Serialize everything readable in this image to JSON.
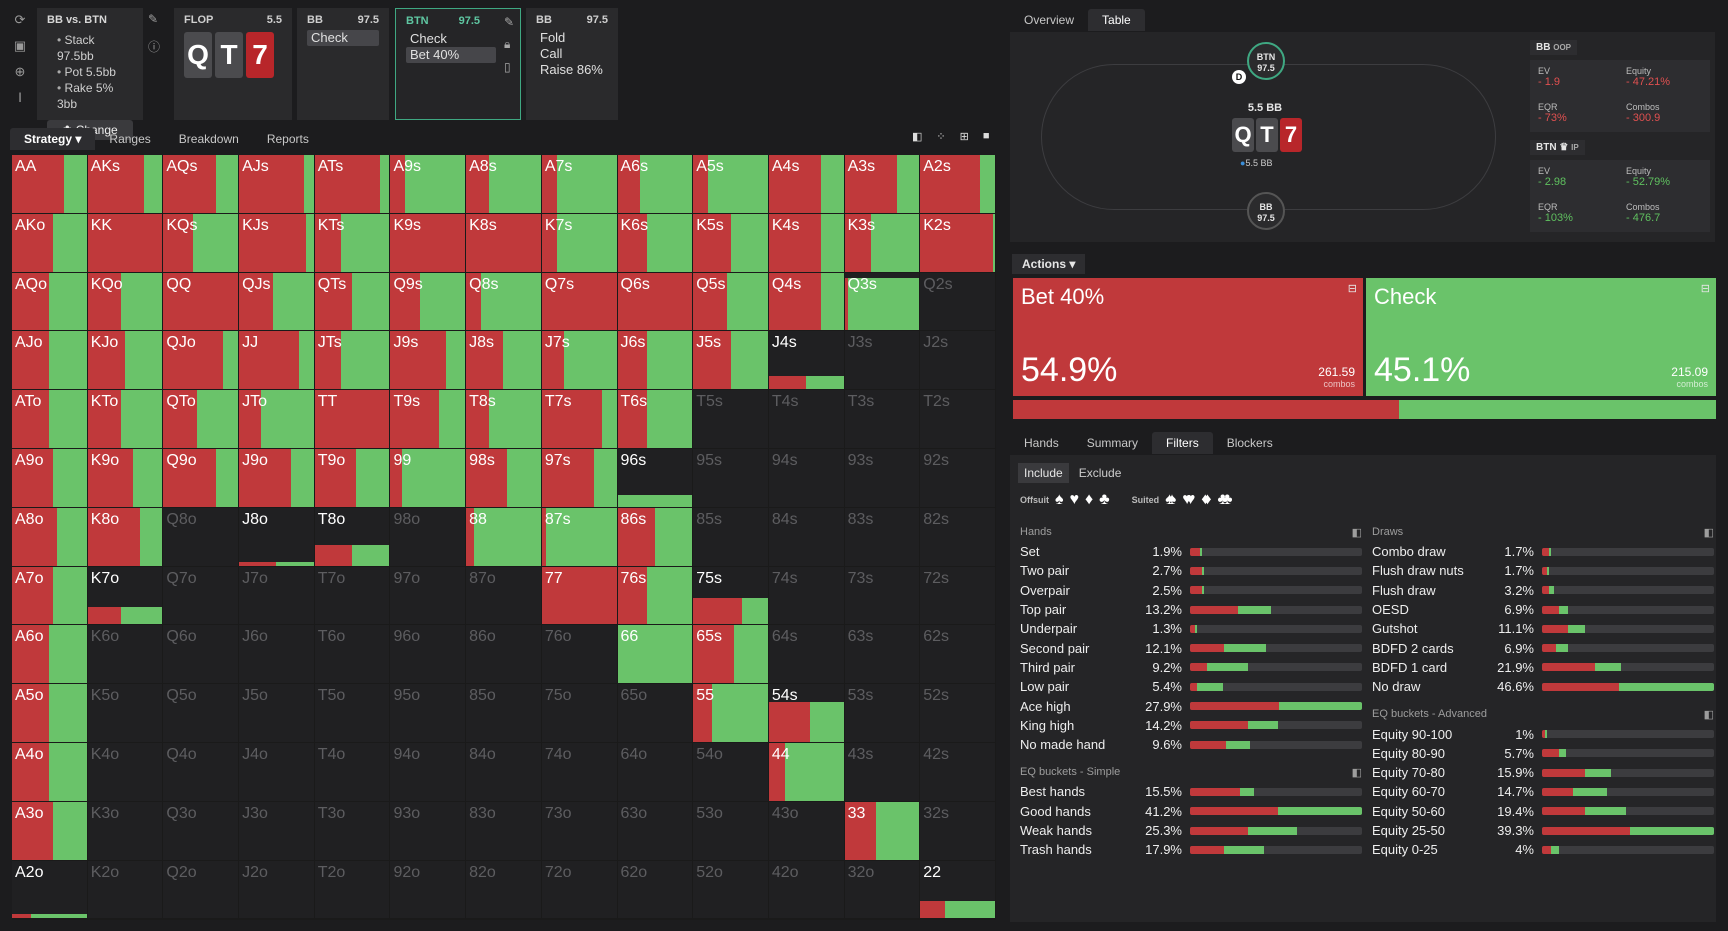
{
  "sidebar_icons": [
    "refresh-icon",
    "save-icon",
    "gamepad-icon",
    "text-cursor-icon"
  ],
  "scenario": {
    "title": "BB vs. BTN",
    "lines": [
      "Stack 97.5bb",
      "Pot 5.5bb",
      "Rake 5% 3bb"
    ],
    "change_label": "Change"
  },
  "flop": {
    "label": "FLOP",
    "pot": "5.5",
    "cards": [
      {
        "r": "Q",
        "c": "g"
      },
      {
        "r": "T",
        "c": "g"
      },
      {
        "r": "7",
        "c": "r"
      }
    ]
  },
  "nodes": [
    {
      "player": "BB",
      "stack": "97.5",
      "options": [
        "Check"
      ],
      "selected": 0
    },
    {
      "player": "BTN",
      "stack": "97.5",
      "options": [
        "Check",
        "Bet 40%"
      ],
      "selected": 1
    },
    {
      "player": "BB",
      "stack": "97.5",
      "options": [
        "Fold",
        "Call",
        "Raise 86%"
      ],
      "selected": -1
    }
  ],
  "main_tabs": [
    "Strategy",
    "Ranges",
    "Breakdown",
    "Reports"
  ],
  "right_tabs": [
    "Overview",
    "Table"
  ],
  "table": {
    "btn_seat": {
      "name": "BTN",
      "stack": "97.5"
    },
    "bb_seat": {
      "name": "BB",
      "stack": "97.5"
    },
    "dealer": "D",
    "pot": "5.5 BB",
    "pot_chip": "5.5 BB",
    "cards": [
      "Q",
      "T",
      "7"
    ]
  },
  "stats": [
    {
      "player": "BB",
      "pos": "OOP",
      "ev": "1.9",
      "equity": "47.21%",
      "eqr": "73%",
      "combos": "300.9",
      "color": "#e05050"
    },
    {
      "player": "BTN",
      "pos": "IP",
      "ev": "2.98",
      "equity": "52.79%",
      "eqr": "103%",
      "combos": "476.7",
      "color": "#5fc05f"
    }
  ],
  "stat_labels": {
    "ev": "EV",
    "equity": "Equity",
    "eqr": "EQR",
    "combos": "Combos"
  },
  "actions_label": "Actions",
  "action_cards": [
    {
      "name": "Bet 40%",
      "pct": "54.9%",
      "combos": "261.59",
      "combos_label": "combos"
    },
    {
      "name": "Check",
      "pct": "45.1%",
      "combos": "215.09",
      "combos_label": "combos"
    }
  ],
  "action_split": 0.549,
  "lower_tabs": [
    "Hands",
    "Summary",
    "Filters",
    "Blockers"
  ],
  "include_tabs": [
    "Include",
    "Exclude"
  ],
  "suit_filters": {
    "offsuit_label": "Offsuit",
    "suited_label": "Suited",
    "offsuit": [
      "♠",
      "♥",
      "♦",
      "♣"
    ],
    "suited": [
      "♠♠",
      "♥♥",
      "♦♦",
      "♣♣"
    ]
  },
  "hands_section": {
    "title": "Hands",
    "rows": [
      {
        "name": "Set",
        "pct": "1.9%",
        "r": 0.06,
        "g": 0.01
      },
      {
        "name": "Two pair",
        "pct": "2.7%",
        "r": 0.07,
        "g": 0.01
      },
      {
        "name": "Overpair",
        "pct": "2.5%",
        "r": 0.07,
        "g": 0.01
      },
      {
        "name": "Top pair",
        "pct": "13.2%",
        "r": 0.28,
        "g": 0.19
      },
      {
        "name": "Underpair",
        "pct": "1.3%",
        "r": 0.03,
        "g": 0.01
      },
      {
        "name": "Second pair",
        "pct": "12.1%",
        "r": 0.2,
        "g": 0.24
      },
      {
        "name": "Third pair",
        "pct": "9.2%",
        "r": 0.1,
        "g": 0.24
      },
      {
        "name": "Low pair",
        "pct": "5.4%",
        "r": 0.04,
        "g": 0.15
      },
      {
        "name": "Ace high",
        "pct": "27.9%",
        "r": 0.52,
        "g": 0.48
      },
      {
        "name": "King high",
        "pct": "14.2%",
        "r": 0.34,
        "g": 0.17
      },
      {
        "name": "No made hand",
        "pct": "9.6%",
        "r": 0.21,
        "g": 0.14
      }
    ]
  },
  "eq_simple": {
    "title": "EQ buckets - Simple",
    "rows": [
      {
        "name": "Best hands",
        "pct": "15.5%",
        "r": 0.29,
        "g": 0.08
      },
      {
        "name": "Good hands",
        "pct": "41.2%",
        "r": 0.51,
        "g": 0.49
      },
      {
        "name": "Weak hands",
        "pct": "25.3%",
        "r": 0.34,
        "g": 0.28
      },
      {
        "name": "Trash hands",
        "pct": "17.9%",
        "r": 0.2,
        "g": 0.23
      }
    ]
  },
  "draws_section": {
    "title": "Draws",
    "rows": [
      {
        "name": "Combo draw",
        "pct": "1.7%",
        "r": 0.04,
        "g": 0.01
      },
      {
        "name": "Flush draw nuts",
        "pct": "1.7%",
        "r": 0.03,
        "g": 0.01
      },
      {
        "name": "Flush draw",
        "pct": "3.2%",
        "r": 0.04,
        "g": 0.03
      },
      {
        "name": "OESD",
        "pct": "6.9%",
        "r": 0.1,
        "g": 0.05
      },
      {
        "name": "Gutshot",
        "pct": "11.1%",
        "r": 0.15,
        "g": 0.1
      },
      {
        "name": "BDFD 2 cards",
        "pct": "6.9%",
        "r": 0.08,
        "g": 0.07
      },
      {
        "name": "BDFD 1 card",
        "pct": "21.9%",
        "r": 0.31,
        "g": 0.15
      },
      {
        "name": "No draw",
        "pct": "46.6%",
        "r": 0.45,
        "g": 0.55
      }
    ]
  },
  "eq_advanced": {
    "title": "EQ buckets - Advanced",
    "rows": [
      {
        "name": "Equity 90-100",
        "pct": "1%",
        "r": 0.02,
        "g": 0.01
      },
      {
        "name": "Equity 80-90",
        "pct": "5.7%",
        "r": 0.1,
        "g": 0.04
      },
      {
        "name": "Equity 70-80",
        "pct": "15.9%",
        "r": 0.25,
        "g": 0.15
      },
      {
        "name": "Equity 60-70",
        "pct": "14.7%",
        "r": 0.18,
        "g": 0.2
      },
      {
        "name": "Equity 50-60",
        "pct": "19.4%",
        "r": 0.25,
        "g": 0.24
      },
      {
        "name": "Equity 25-50",
        "pct": "39.3%",
        "r": 0.51,
        "g": 0.49
      },
      {
        "name": "Equity 0-25",
        "pct": "4%",
        "r": 0.05,
        "g": 0.05
      }
    ]
  },
  "matrix_ranks": [
    "A",
    "K",
    "Q",
    "J",
    "T",
    "9",
    "8",
    "7",
    "6",
    "5",
    "4",
    "3",
    "2"
  ],
  "matrix": [
    [
      {
        "h": "AA",
        "f": 1,
        "r": 0.7
      },
      {
        "h": "AKs",
        "f": 1,
        "r": 0.75
      },
      {
        "h": "AQs",
        "f": 1,
        "r": 0.7
      },
      {
        "h": "AJs",
        "f": 1,
        "r": 0.87
      },
      {
        "h": "ATs",
        "f": 1,
        "r": 0.87
      },
      {
        "h": "A9s",
        "f": 1,
        "r": 0.2
      },
      {
        "h": "A8s",
        "f": 1,
        "r": 0.3
      },
      {
        "h": "A7s",
        "f": 1,
        "r": 0.2
      },
      {
        "h": "A6s",
        "f": 1,
        "r": 0.3
      },
      {
        "h": "A5s",
        "f": 1,
        "r": 0.2
      },
      {
        "h": "A4s",
        "f": 1,
        "r": 0.7
      },
      {
        "h": "A3s",
        "f": 1,
        "r": 0.7
      },
      {
        "h": "A2s",
        "f": 1,
        "r": 0.8
      }
    ],
    [
      {
        "h": "AKo",
        "f": 1,
        "r": 0.55
      },
      {
        "h": "KK",
        "f": 1,
        "r": 1
      },
      {
        "h": "KQs",
        "f": 1,
        "r": 0.4
      },
      {
        "h": "KJs",
        "f": 1,
        "r": 0.9
      },
      {
        "h": "KTs",
        "f": 1,
        "r": 0.35
      },
      {
        "h": "K9s",
        "f": 1,
        "r": 1
      },
      {
        "h": "K8s",
        "f": 1,
        "r": 1
      },
      {
        "h": "K7s",
        "f": 1,
        "r": 0.2
      },
      {
        "h": "K6s",
        "f": 1,
        "r": 0.4
      },
      {
        "h": "K5s",
        "f": 1,
        "r": 0.5
      },
      {
        "h": "K4s",
        "f": 1,
        "r": 0.7
      },
      {
        "h": "K3s",
        "f": 1,
        "r": 0.35
      },
      {
        "h": "K2s",
        "f": 1,
        "r": 0.97
      }
    ],
    [
      {
        "h": "AQo",
        "f": 1,
        "r": 0.5
      },
      {
        "h": "KQo",
        "f": 1,
        "r": 0.45
      },
      {
        "h": "QQ",
        "f": 1,
        "r": 1
      },
      {
        "h": "QJs",
        "f": 1,
        "r": 0.45
      },
      {
        "h": "QTs",
        "f": 1,
        "r": 0.5
      },
      {
        "h": "Q9s",
        "f": 1,
        "r": 0.4
      },
      {
        "h": "Q8s",
        "f": 1,
        "r": 0.2
      },
      {
        "h": "Q7s",
        "f": 1,
        "r": 1
      },
      {
        "h": "Q6s",
        "f": 1,
        "r": 1
      },
      {
        "h": "Q5s",
        "f": 1,
        "r": 0.45
      },
      {
        "h": "Q4s",
        "f": 1,
        "r": 0.7
      },
      {
        "h": "Q3s",
        "f": 0.9,
        "r": 0.05
      },
      {
        "h": "Q2s",
        "f": 0,
        "r": 0
      }
    ],
    [
      {
        "h": "AJo",
        "f": 1,
        "r": 0.5
      },
      {
        "h": "KJo",
        "f": 1,
        "r": 0.5
      },
      {
        "h": "QJo",
        "f": 1,
        "r": 0.8
      },
      {
        "h": "JJ",
        "f": 1,
        "r": 0.8
      },
      {
        "h": "JTs",
        "f": 1,
        "r": 0.35
      },
      {
        "h": "J9s",
        "f": 1,
        "r": 0.75
      },
      {
        "h": "J8s",
        "f": 1,
        "r": 0.5
      },
      {
        "h": "J7s",
        "f": 1,
        "r": 0.3
      },
      {
        "h": "J6s",
        "f": 1,
        "r": 0.4
      },
      {
        "h": "J5s",
        "f": 1,
        "r": 0.5
      },
      {
        "h": "J4s",
        "f": 0.22,
        "r": 0.5
      },
      {
        "h": "J3s",
        "f": 0,
        "r": 0
      },
      {
        "h": "J2s",
        "f": 0,
        "r": 0
      }
    ],
    [
      {
        "h": "ATo",
        "f": 1,
        "r": 0.5
      },
      {
        "h": "KTo",
        "f": 1,
        "r": 0.45
      },
      {
        "h": "QTo",
        "f": 1,
        "r": 0.45
      },
      {
        "h": "JTo",
        "f": 1,
        "r": 0.3
      },
      {
        "h": "TT",
        "f": 1,
        "r": 1
      },
      {
        "h": "T9s",
        "f": 1,
        "r": 0.65
      },
      {
        "h": "T8s",
        "f": 1,
        "r": 0.3
      },
      {
        "h": "T7s",
        "f": 1,
        "r": 0.8
      },
      {
        "h": "T6s",
        "f": 1,
        "r": 0.4
      },
      {
        "h": "T5s",
        "f": 0,
        "r": 0
      },
      {
        "h": "T4s",
        "f": 0,
        "r": 0
      },
      {
        "h": "T3s",
        "f": 0,
        "r": 0
      },
      {
        "h": "T2s",
        "f": 0,
        "r": 0
      }
    ],
    [
      {
        "h": "A9o",
        "f": 1,
        "r": 0.55
      },
      {
        "h": "K9o",
        "f": 1,
        "r": 0.6
      },
      {
        "h": "Q9o",
        "f": 1,
        "r": 0.7
      },
      {
        "h": "J9o",
        "f": 1,
        "r": 0.7
      },
      {
        "h": "T9o",
        "f": 1,
        "r": 0.55
      },
      {
        "h": "99",
        "f": 1,
        "r": 0.15
      },
      {
        "h": "98s",
        "f": 1,
        "r": 0.55
      },
      {
        "h": "97s",
        "f": 1,
        "r": 0.7
      },
      {
        "h": "96s",
        "f": 0.2,
        "r": 0
      },
      {
        "h": "95s",
        "f": 0,
        "r": 0
      },
      {
        "h": "94s",
        "f": 0,
        "r": 0
      },
      {
        "h": "93s",
        "f": 0,
        "r": 0
      },
      {
        "h": "92s",
        "f": 0,
        "r": 0
      }
    ],
    [
      {
        "h": "A8o",
        "f": 1,
        "r": 0.6
      },
      {
        "h": "K8o",
        "f": 1,
        "r": 0.7
      },
      {
        "h": "Q8o",
        "f": 0,
        "r": 0
      },
      {
        "h": "J8o",
        "f": 0.06,
        "r": 0.5
      },
      {
        "h": "T8o",
        "f": 0.35,
        "r": 0.5
      },
      {
        "h": "98o",
        "f": 0,
        "r": 0
      },
      {
        "h": "88",
        "f": 1,
        "r": 0.1
      },
      {
        "h": "87s",
        "f": 1,
        "r": 0.05
      },
      {
        "h": "86s",
        "f": 1,
        "r": 0.5
      },
      {
        "h": "85s",
        "f": 0,
        "r": 0
      },
      {
        "h": "84s",
        "f": 0,
        "r": 0
      },
      {
        "h": "83s",
        "f": 0,
        "r": 0
      },
      {
        "h": "82s",
        "f": 0,
        "r": 0
      }
    ],
    [
      {
        "h": "A7o",
        "f": 1,
        "r": 0.55
      },
      {
        "h": "K7o",
        "f": 0.3,
        "r": 0.45
      },
      {
        "h": "Q7o",
        "f": 0,
        "r": 0
      },
      {
        "h": "J7o",
        "f": 0,
        "r": 0
      },
      {
        "h": "T7o",
        "f": 0,
        "r": 0
      },
      {
        "h": "97o",
        "f": 0,
        "r": 0
      },
      {
        "h": "87o",
        "f": 0,
        "r": 0
      },
      {
        "h": "77",
        "f": 1,
        "r": 1
      },
      {
        "h": "76s",
        "f": 1,
        "r": 0.4
      },
      {
        "h": "75s",
        "f": 0.45,
        "r": 0.65
      },
      {
        "h": "74s",
        "f": 0,
        "r": 0
      },
      {
        "h": "73s",
        "f": 0,
        "r": 0
      },
      {
        "h": "72s",
        "f": 0,
        "r": 0
      }
    ],
    [
      {
        "h": "A6o",
        "f": 1,
        "r": 0.5
      },
      {
        "h": "K6o",
        "f": 0,
        "r": 0
      },
      {
        "h": "Q6o",
        "f": 0,
        "r": 0
      },
      {
        "h": "J6o",
        "f": 0,
        "r": 0
      },
      {
        "h": "T6o",
        "f": 0,
        "r": 0
      },
      {
        "h": "96o",
        "f": 0,
        "r": 0
      },
      {
        "h": "86o",
        "f": 0,
        "r": 0
      },
      {
        "h": "76o",
        "f": 0,
        "r": 0
      },
      {
        "h": "66",
        "f": 1,
        "r": 0
      },
      {
        "h": "65s",
        "f": 1,
        "r": 0.55
      },
      {
        "h": "64s",
        "f": 0,
        "r": 0
      },
      {
        "h": "63s",
        "f": 0,
        "r": 0
      },
      {
        "h": "62s",
        "f": 0,
        "r": 0
      }
    ],
    [
      {
        "h": "A5o",
        "f": 1,
        "r": 0.5
      },
      {
        "h": "K5o",
        "f": 0,
        "r": 0
      },
      {
        "h": "Q5o",
        "f": 0,
        "r": 0
      },
      {
        "h": "J5o",
        "f": 0,
        "r": 0
      },
      {
        "h": "T5o",
        "f": 0,
        "r": 0
      },
      {
        "h": "95o",
        "f": 0,
        "r": 0
      },
      {
        "h": "85o",
        "f": 0,
        "r": 0
      },
      {
        "h": "75o",
        "f": 0,
        "r": 0
      },
      {
        "h": "65o",
        "f": 0,
        "r": 0
      },
      {
        "h": "55",
        "f": 1,
        "r": 0.25
      },
      {
        "h": "54s",
        "f": 0.7,
        "r": 0.55
      },
      {
        "h": "53s",
        "f": 0,
        "r": 0
      },
      {
        "h": "52s",
        "f": 0,
        "r": 0
      }
    ],
    [
      {
        "h": "A4o",
        "f": 1,
        "r": 0.5
      },
      {
        "h": "K4o",
        "f": 0,
        "r": 0
      },
      {
        "h": "Q4o",
        "f": 0,
        "r": 0
      },
      {
        "h": "J4o",
        "f": 0,
        "r": 0
      },
      {
        "h": "T4o",
        "f": 0,
        "r": 0
      },
      {
        "h": "94o",
        "f": 0,
        "r": 0
      },
      {
        "h": "84o",
        "f": 0,
        "r": 0
      },
      {
        "h": "74o",
        "f": 0,
        "r": 0
      },
      {
        "h": "64o",
        "f": 0,
        "r": 0
      },
      {
        "h": "54o",
        "f": 0,
        "r": 0
      },
      {
        "h": "44",
        "f": 1,
        "r": 0.22
      },
      {
        "h": "43s",
        "f": 0,
        "r": 0
      },
      {
        "h": "42s",
        "f": 0,
        "r": 0
      }
    ],
    [
      {
        "h": "A3o",
        "f": 1,
        "r": 0.55
      },
      {
        "h": "K3o",
        "f": 0,
        "r": 0
      },
      {
        "h": "Q3o",
        "f": 0,
        "r": 0
      },
      {
        "h": "J3o",
        "f": 0,
        "r": 0
      },
      {
        "h": "T3o",
        "f": 0,
        "r": 0
      },
      {
        "h": "93o",
        "f": 0,
        "r": 0
      },
      {
        "h": "83o",
        "f": 0,
        "r": 0
      },
      {
        "h": "73o",
        "f": 0,
        "r": 0
      },
      {
        "h": "63o",
        "f": 0,
        "r": 0
      },
      {
        "h": "53o",
        "f": 0,
        "r": 0
      },
      {
        "h": "43o",
        "f": 0,
        "r": 0
      },
      {
        "h": "33",
        "f": 1,
        "r": 0.42
      },
      {
        "h": "32s",
        "f": 0,
        "r": 0
      }
    ],
    [
      {
        "h": "A2o",
        "f": 0.08,
        "r": 0.25
      },
      {
        "h": "K2o",
        "f": 0,
        "r": 0
      },
      {
        "h": "Q2o",
        "f": 0,
        "r": 0
      },
      {
        "h": "J2o",
        "f": 0,
        "r": 0
      },
      {
        "h": "T2o",
        "f": 0,
        "r": 0
      },
      {
        "h": "92o",
        "f": 0,
        "r": 0
      },
      {
        "h": "82o",
        "f": 0,
        "r": 0
      },
      {
        "h": "72o",
        "f": 0,
        "r": 0
      },
      {
        "h": "62o",
        "f": 0,
        "r": 0
      },
      {
        "h": "52o",
        "f": 0,
        "r": 0
      },
      {
        "h": "42o",
        "f": 0,
        "r": 0
      },
      {
        "h": "32o",
        "f": 0,
        "r": 0
      },
      {
        "h": "22",
        "f": 0.3,
        "r": 0.33
      }
    ]
  ]
}
